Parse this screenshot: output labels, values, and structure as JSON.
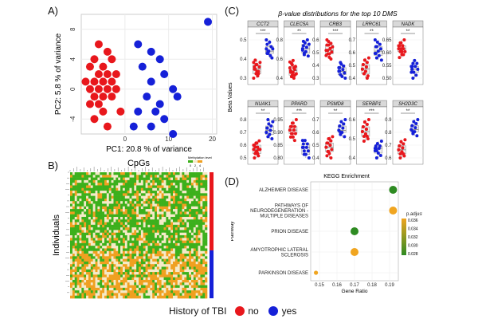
{
  "panels": {
    "a_label": "A)",
    "b_label": "B)",
    "c_label": "(C)",
    "d_label": "(D)"
  },
  "colors": {
    "no": "#e8171c",
    "yes": "#1520d8",
    "heat_green": "#3cb01c",
    "heat_orange": "#f0a020",
    "heat_cream": "#f5eac8"
  },
  "chart_data": [
    {
      "id": "pca",
      "type": "scatter",
      "title": "",
      "xlabel": "PC1: 20.8 % of variance",
      "ylabel": "PC2: 5.8 % of variance",
      "xlim": [
        -10,
        21
      ],
      "ylim": [
        -6,
        10
      ],
      "xticks": [
        0,
        10,
        20
      ],
      "yticks": [
        -4,
        0,
        4,
        8
      ],
      "series": [
        {
          "name": "no",
          "points": [
            [
              -6,
              6
            ],
            [
              -4,
              5
            ],
            [
              -7,
              4
            ],
            [
              -3,
              4
            ],
            [
              -5,
              3
            ],
            [
              -8,
              3
            ],
            [
              -6,
              2
            ],
            [
              -4,
              2
            ],
            [
              -7,
              1
            ],
            [
              -5,
              1
            ],
            [
              -3,
              1
            ],
            [
              -8,
              0
            ],
            [
              -6,
              0
            ],
            [
              -4,
              0
            ],
            [
              -7,
              -1
            ],
            [
              -5,
              -1
            ],
            [
              -3,
              -1
            ],
            [
              -6,
              -2
            ],
            [
              -9,
              1
            ],
            [
              -2,
              2
            ],
            [
              -8,
              -2
            ],
            [
              -5,
              -3
            ],
            [
              -7,
              -4
            ],
            [
              -4,
              -5
            ],
            [
              -1,
              -3
            ],
            [
              -2,
              0
            ]
          ]
        },
        {
          "name": "yes",
          "points": [
            [
              19,
              9
            ],
            [
              3,
              6
            ],
            [
              6,
              5
            ],
            [
              8,
              4
            ],
            [
              4,
              3
            ],
            [
              9,
              2
            ],
            [
              6,
              1
            ],
            [
              11,
              0
            ],
            [
              5,
              -1
            ],
            [
              12,
              -1
            ],
            [
              8,
              -2
            ],
            [
              3,
              -3
            ],
            [
              9,
              -4
            ],
            [
              2,
              -5
            ],
            [
              6,
              -5
            ],
            [
              11,
              -6
            ],
            [
              7,
              -3
            ]
          ]
        }
      ]
    },
    {
      "id": "dms",
      "type": "scatter",
      "title": "β-value distributions for the top 10 DMS",
      "ylabel": "Beta Values",
      "panels": [
        {
          "gene": "CCT2",
          "sig": "***",
          "yticks": [
            "0.5",
            "0.4",
            "0.3"
          ],
          "no": [
            0.36,
            0.34,
            0.33,
            0.35,
            0.32,
            0.3,
            0.31,
            0.34,
            0.36,
            0.29,
            0.33,
            0.37,
            0.31,
            0.35,
            0.3,
            0.32
          ],
          "yes": [
            0.42,
            0.44,
            0.4,
            0.41,
            0.45,
            0.39,
            0.43,
            0.38,
            0.42,
            0.46,
            0.4,
            0.41
          ]
        },
        {
          "gene": "CLEC5A",
          "sig": "**",
          "yticks": [
            "0.8",
            "0.6",
            "0.4"
          ],
          "no": [
            0.55,
            0.52,
            0.58,
            0.5,
            0.6,
            0.48,
            0.54,
            0.56,
            0.51,
            0.59,
            0.53,
            0.49,
            0.57,
            0.52,
            0.55,
            0.5
          ],
          "yes": [
            0.68,
            0.7,
            0.65,
            0.72,
            0.66,
            0.69,
            0.74,
            0.63,
            0.71,
            0.67,
            0.73,
            0.64
          ]
        },
        {
          "gene": "CRB3",
          "sig": "***",
          "yticks": [
            "0.6",
            "0.5",
            "0.4",
            "0.3"
          ],
          "no": [
            0.52,
            0.55,
            0.5,
            0.57,
            0.48,
            0.53,
            0.56,
            0.51,
            0.54,
            0.49,
            0.58,
            0.52,
            0.55,
            0.5,
            0.53,
            0.47
          ],
          "yes": [
            0.4,
            0.42,
            0.38,
            0.44,
            0.37,
            0.41,
            0.43,
            0.39,
            0.36,
            0.42,
            0.4,
            0.45
          ]
        },
        {
          "gene": "LRRC61",
          "sig": "**",
          "yticks": [
            "0.7",
            "0.6",
            "0.5",
            "0.4"
          ],
          "no": [
            0.48,
            0.5,
            0.46,
            0.52,
            0.47,
            0.49,
            0.51,
            0.45,
            0.53,
            0.48,
            0.5,
            0.46,
            0.52,
            0.47,
            0.49,
            0.44
          ],
          "yes": [
            0.55,
            0.58,
            0.53,
            0.6,
            0.56,
            0.54,
            0.59,
            0.57,
            0.52,
            0.61,
            0.55,
            0.58
          ]
        },
        {
          "gene": "NADK",
          "sig": "**",
          "yticks": [
            "0.65",
            "0.60",
            "0.55",
            "0.50"
          ],
          "no": [
            0.61,
            0.62,
            0.6,
            0.63,
            0.59,
            0.62,
            0.61,
            0.64,
            0.6,
            0.62,
            0.58,
            0.63,
            0.61,
            0.6,
            0.62,
            0.59
          ],
          "yes": [
            0.55,
            0.54,
            0.56,
            0.53,
            0.57,
            0.55,
            0.52,
            0.56,
            0.54,
            0.53,
            0.55,
            0.51
          ]
        },
        {
          "gene": "NUAK1",
          "sig": "**",
          "yticks": [
            "0.8",
            "0.7",
            "0.6",
            "0.5"
          ],
          "no": [
            0.6,
            0.62,
            0.58,
            0.63,
            0.59,
            0.61,
            0.57,
            0.64,
            0.6,
            0.62,
            0.56,
            0.61,
            0.59,
            0.63,
            0.58,
            0.6
          ],
          "yes": [
            0.68,
            0.7,
            0.66,
            0.72,
            0.67,
            0.69,
            0.71,
            0.65,
            0.73,
            0.68,
            0.7,
            0.74
          ]
        },
        {
          "gene": "PPARD",
          "sig": "***",
          "yticks": [
            "0.95",
            "0.90",
            "0.85",
            "0.80"
          ],
          "no": [
            0.89,
            0.9,
            0.88,
            0.91,
            0.87,
            0.89,
            0.9,
            0.88,
            0.92,
            0.89,
            0.87,
            0.9,
            0.88,
            0.91,
            0.89,
            0.86
          ],
          "yes": [
            0.84,
            0.85,
            0.83,
            0.86,
            0.82,
            0.84,
            0.85,
            0.83,
            0.81,
            0.86,
            0.84,
            0.82
          ]
        },
        {
          "gene": "PSMD8",
          "sig": "**",
          "yticks": [
            "0.7",
            "0.6",
            "0.5",
            "0.4"
          ],
          "no": [
            0.52,
            0.54,
            0.5,
            0.56,
            0.49,
            0.53,
            0.55,
            0.51,
            0.57,
            0.52,
            0.48,
            0.54,
            0.5,
            0.56,
            0.53,
            0.47
          ],
          "yes": [
            0.6,
            0.62,
            0.58,
            0.64,
            0.59,
            0.61,
            0.63,
            0.57,
            0.65,
            0.6,
            0.62,
            0.59
          ]
        },
        {
          "gene": "SERBP1",
          "sig": "***",
          "yticks": [
            "0.6",
            "0.5",
            "0.4"
          ],
          "no": [
            0.5,
            0.52,
            0.48,
            0.54,
            0.49,
            0.51,
            0.53,
            0.47,
            0.55,
            0.5,
            0.52,
            0.46,
            0.54,
            0.49,
            0.51,
            0.48
          ],
          "yes": [
            0.43,
            0.44,
            0.42,
            0.45,
            0.41,
            0.43,
            0.44,
            0.4,
            0.46,
            0.42,
            0.43,
            0.39
          ]
        },
        {
          "gene": "SH2D3C",
          "sig": "**",
          "yticks": [
            "0.9",
            "0.8",
            "0.7",
            "0.6"
          ],
          "no": [
            0.7,
            0.72,
            0.68,
            0.74,
            0.69,
            0.71,
            0.73,
            0.67,
            0.75,
            0.7,
            0.72,
            0.66,
            0.74,
            0.69,
            0.71,
            0.68
          ],
          "yes": [
            0.8,
            0.82,
            0.78,
            0.84,
            0.79,
            0.81,
            0.83,
            0.77,
            0.85,
            0.8,
            0.82,
            0.79
          ]
        }
      ]
    },
    {
      "id": "heatmap",
      "type": "heatmap",
      "title": "CpGs",
      "ylabel": "Individuals",
      "scale_title": "Methylation level",
      "scale_ticks": [
        "0",
        "2",
        "4"
      ]
    },
    {
      "id": "kegg",
      "type": "scatter",
      "title": "KEGG Enrichment",
      "xlabel": "Gene Ratio",
      "ylabel": "Pathway",
      "xlim": [
        0.145,
        0.195
      ],
      "xticks": [
        "0.15",
        "0.16",
        "0.17",
        "0.18",
        "0.19"
      ],
      "legend_title": "p.adjust",
      "legend_ticks": [
        "0.036",
        "0.034",
        "0.032",
        "0.030",
        "0.028"
      ],
      "points": [
        {
          "pathway": "ALZHEIMER DISEASE",
          "lines": [
            "ALZHEIMER DISEASE"
          ],
          "ratio": 0.192,
          "padj": 0.028
        },
        {
          "pathway": "PATHWAYS OF NEURODEGENERATION - MULTIPLE DISEASES",
          "lines": [
            "PATHWAYS OF",
            "NEURODEGENERATION -",
            "MULTIPLE DISEASES"
          ],
          "ratio": 0.192,
          "padj": 0.036
        },
        {
          "pathway": "PRION DISEASE",
          "lines": [
            "PRION DISEASE"
          ],
          "ratio": 0.17,
          "padj": 0.028
        },
        {
          "pathway": "AMYOTROPHIC LATERAL SCLEROSIS",
          "lines": [
            "AMYOTROPHIC LATERAL",
            "SCLEROSIS"
          ],
          "ratio": 0.17,
          "padj": 0.036
        },
        {
          "pathway": "PARKINSON DISEASE",
          "lines": [
            "PARKINSON DISEASE"
          ],
          "ratio": 0.148,
          "padj": 0.036
        }
      ]
    }
  ],
  "legend": {
    "title": "History of TBI",
    "items": [
      {
        "label": "no",
        "color": "#e8171c"
      },
      {
        "label": "yes",
        "color": "#1520d8"
      }
    ]
  }
}
